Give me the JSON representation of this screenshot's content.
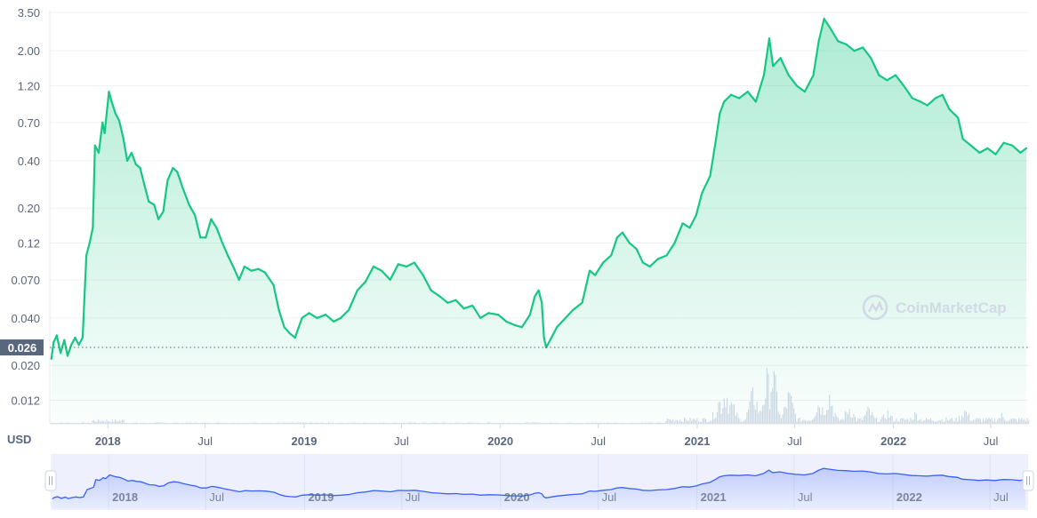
{
  "chart_data": {
    "type": "line",
    "currency": "USD",
    "y_scale": "log",
    "ylim": [
      0.0085,
      3.6
    ],
    "y_ticks": [
      "3.50",
      "2.00",
      "1.20",
      "0.70",
      "0.40",
      "0.20",
      "0.12",
      "0.070",
      "0.040",
      "0.020",
      "0.012"
    ],
    "x_ticks": [
      {
        "label": "2018",
        "date": "2018-01-01",
        "major": true
      },
      {
        "label": "Jul",
        "date": "2018-07-01",
        "major": false
      },
      {
        "label": "2019",
        "date": "2019-01-01",
        "major": true
      },
      {
        "label": "Jul",
        "date": "2019-07-01",
        "major": false
      },
      {
        "label": "2020",
        "date": "2020-01-01",
        "major": true
      },
      {
        "label": "Jul",
        "date": "2020-07-01",
        "major": false
      },
      {
        "label": "2021",
        "date": "2021-01-01",
        "major": true
      },
      {
        "label": "Jul",
        "date": "2021-07-01",
        "major": false
      },
      {
        "label": "2022",
        "date": "2022-01-01",
        "major": true
      },
      {
        "label": "Jul",
        "date": "2022-07-01",
        "major": false
      }
    ],
    "xlim": [
      "2017-09-15",
      "2022-09-10"
    ],
    "reference_price": {
      "value": 0.026,
      "label": "0.026"
    },
    "grid": true,
    "watermark": "CoinMarketCap",
    "colors": {
      "up": "#16c784",
      "down": "#ea3943",
      "fill_top": "#16c784",
      "volume": "#cfd6e4",
      "navigator_line": "#3861fb",
      "navigator_bg": "#eef1fd"
    },
    "series": [
      {
        "values": [
          [
            "2017-09-18",
            0.022
          ],
          [
            "2017-09-22",
            0.028
          ],
          [
            "2017-09-28",
            0.031
          ],
          [
            "2017-10-05",
            0.024
          ],
          [
            "2017-10-12",
            0.029
          ],
          [
            "2017-10-18",
            0.023
          ],
          [
            "2017-10-25",
            0.027
          ],
          [
            "2017-11-01",
            0.03
          ],
          [
            "2017-11-08",
            0.027
          ],
          [
            "2017-11-15",
            0.03
          ],
          [
            "2017-11-22",
            0.1
          ],
          [
            "2017-11-28",
            0.12
          ],
          [
            "2017-12-04",
            0.15
          ],
          [
            "2017-12-08",
            0.5
          ],
          [
            "2017-12-15",
            0.45
          ],
          [
            "2017-12-22",
            0.7
          ],
          [
            "2017-12-26",
            0.6
          ],
          [
            "2018-01-03",
            1.1
          ],
          [
            "2018-01-08",
            0.95
          ],
          [
            "2018-01-15",
            0.8
          ],
          [
            "2018-01-22",
            0.72
          ],
          [
            "2018-01-30",
            0.55
          ],
          [
            "2018-02-06",
            0.4
          ],
          [
            "2018-02-14",
            0.45
          ],
          [
            "2018-02-22",
            0.38
          ],
          [
            "2018-03-02",
            0.36
          ],
          [
            "2018-03-10",
            0.28
          ],
          [
            "2018-03-18",
            0.22
          ],
          [
            "2018-03-28",
            0.21
          ],
          [
            "2018-04-05",
            0.17
          ],
          [
            "2018-04-14",
            0.19
          ],
          [
            "2018-04-22",
            0.3
          ],
          [
            "2018-05-02",
            0.36
          ],
          [
            "2018-05-10",
            0.34
          ],
          [
            "2018-05-20",
            0.27
          ],
          [
            "2018-06-01",
            0.21
          ],
          [
            "2018-06-12",
            0.18
          ],
          [
            "2018-06-22",
            0.13
          ],
          [
            "2018-07-02",
            0.13
          ],
          [
            "2018-07-12",
            0.17
          ],
          [
            "2018-07-22",
            0.15
          ],
          [
            "2018-08-02",
            0.12
          ],
          [
            "2018-08-12",
            0.1
          ],
          [
            "2018-08-22",
            0.085
          ],
          [
            "2018-09-02",
            0.07
          ],
          [
            "2018-09-12",
            0.085
          ],
          [
            "2018-09-25",
            0.08
          ],
          [
            "2018-10-08",
            0.082
          ],
          [
            "2018-10-20",
            0.078
          ],
          [
            "2018-11-05",
            0.065
          ],
          [
            "2018-11-15",
            0.045
          ],
          [
            "2018-11-25",
            0.035
          ],
          [
            "2018-12-05",
            0.032
          ],
          [
            "2018-12-15",
            0.03
          ],
          [
            "2018-12-28",
            0.04
          ],
          [
            "2019-01-10",
            0.043
          ],
          [
            "2019-01-25",
            0.04
          ],
          [
            "2019-02-10",
            0.042
          ],
          [
            "2019-02-25",
            0.038
          ],
          [
            "2019-03-10",
            0.04
          ],
          [
            "2019-03-25",
            0.045
          ],
          [
            "2019-04-10",
            0.06
          ],
          [
            "2019-04-25",
            0.068
          ],
          [
            "2019-05-10",
            0.085
          ],
          [
            "2019-05-25",
            0.08
          ],
          [
            "2019-06-10",
            0.07
          ],
          [
            "2019-06-25",
            0.088
          ],
          [
            "2019-07-10",
            0.085
          ],
          [
            "2019-07-25",
            0.09
          ],
          [
            "2019-08-10",
            0.075
          ],
          [
            "2019-08-25",
            0.06
          ],
          [
            "2019-09-10",
            0.055
          ],
          [
            "2019-09-25",
            0.05
          ],
          [
            "2019-10-10",
            0.052
          ],
          [
            "2019-10-25",
            0.046
          ],
          [
            "2019-11-10",
            0.048
          ],
          [
            "2019-11-25",
            0.04
          ],
          [
            "2019-12-10",
            0.043
          ],
          [
            "2019-12-28",
            0.042
          ],
          [
            "2020-01-12",
            0.038
          ],
          [
            "2020-01-28",
            0.036
          ],
          [
            "2020-02-10",
            0.035
          ],
          [
            "2020-02-25",
            0.042
          ],
          [
            "2020-03-05",
            0.055
          ],
          [
            "2020-03-12",
            0.06
          ],
          [
            "2020-03-18",
            0.05
          ],
          [
            "2020-03-22",
            0.03
          ],
          [
            "2020-03-26",
            0.026
          ],
          [
            "2020-04-05",
            0.03
          ],
          [
            "2020-04-15",
            0.035
          ],
          [
            "2020-05-01",
            0.04
          ],
          [
            "2020-05-15",
            0.045
          ],
          [
            "2020-06-01",
            0.05
          ],
          [
            "2020-06-15",
            0.08
          ],
          [
            "2020-06-25",
            0.075
          ],
          [
            "2020-07-10",
            0.09
          ],
          [
            "2020-07-25",
            0.1
          ],
          [
            "2020-08-05",
            0.13
          ],
          [
            "2020-08-15",
            0.14
          ],
          [
            "2020-08-28",
            0.12
          ],
          [
            "2020-09-10",
            0.11
          ],
          [
            "2020-09-22",
            0.09
          ],
          [
            "2020-10-05",
            0.085
          ],
          [
            "2020-10-20",
            0.095
          ],
          [
            "2020-11-05",
            0.1
          ],
          [
            "2020-11-20",
            0.12
          ],
          [
            "2020-12-05",
            0.16
          ],
          [
            "2020-12-18",
            0.15
          ],
          [
            "2020-12-30",
            0.18
          ],
          [
            "2021-01-10",
            0.25
          ],
          [
            "2021-01-25",
            0.32
          ],
          [
            "2021-02-05",
            0.55
          ],
          [
            "2021-02-12",
            0.8
          ],
          [
            "2021-02-20",
            0.95
          ],
          [
            "2021-03-05",
            1.05
          ],
          [
            "2021-03-20",
            1.0
          ],
          [
            "2021-04-05",
            1.1
          ],
          [
            "2021-04-20",
            0.95
          ],
          [
            "2021-05-05",
            1.4
          ],
          [
            "2021-05-15",
            2.4
          ],
          [
            "2021-05-22",
            1.6
          ],
          [
            "2021-06-05",
            1.8
          ],
          [
            "2021-06-20",
            1.4
          ],
          [
            "2021-07-05",
            1.2
          ],
          [
            "2021-07-20",
            1.1
          ],
          [
            "2021-08-05",
            1.4
          ],
          [
            "2021-08-15",
            2.3
          ],
          [
            "2021-08-25",
            3.2
          ],
          [
            "2021-09-05",
            2.8
          ],
          [
            "2021-09-20",
            2.3
          ],
          [
            "2021-10-05",
            2.2
          ],
          [
            "2021-10-20",
            2.0
          ],
          [
            "2021-11-05",
            2.1
          ],
          [
            "2021-11-20",
            1.8
          ],
          [
            "2021-12-05",
            1.4
          ],
          [
            "2021-12-20",
            1.3
          ],
          [
            "2022-01-05",
            1.4
          ],
          [
            "2022-01-20",
            1.2
          ],
          [
            "2022-02-05",
            1.0
          ],
          [
            "2022-02-20",
            0.95
          ],
          [
            "2022-03-05",
            0.9
          ],
          [
            "2022-03-20",
            1.0
          ],
          [
            "2022-04-02",
            1.05
          ],
          [
            "2022-04-15",
            0.85
          ],
          [
            "2022-05-01",
            0.75
          ],
          [
            "2022-05-10",
            0.55
          ],
          [
            "2022-05-25",
            0.5
          ],
          [
            "2022-06-10",
            0.45
          ],
          [
            "2022-06-25",
            0.48
          ],
          [
            "2022-07-10",
            0.44
          ],
          [
            "2022-07-25",
            0.52
          ],
          [
            "2022-08-10",
            0.5
          ],
          [
            "2022-08-25",
            0.45
          ],
          [
            "2022-09-05",
            0.48
          ]
        ]
      }
    ],
    "volume_peaks": [
      [
        "2021-02-10",
        0.42
      ],
      [
        "2021-02-22",
        0.6
      ],
      [
        "2021-03-05",
        0.35
      ],
      [
        "2021-04-15",
        0.55
      ],
      [
        "2021-05-10",
        0.75
      ],
      [
        "2021-05-20",
        0.9
      ],
      [
        "2021-06-20",
        0.5
      ],
      [
        "2021-08-15",
        0.4
      ],
      [
        "2021-09-02",
        0.55
      ],
      [
        "2021-10-10",
        0.3
      ],
      [
        "2021-11-15",
        0.25
      ],
      [
        "2021-12-20",
        0.2
      ],
      [
        "2022-02-10",
        0.18
      ],
      [
        "2022-05-12",
        0.25
      ],
      [
        "2022-07-20",
        0.15
      ]
    ]
  }
}
